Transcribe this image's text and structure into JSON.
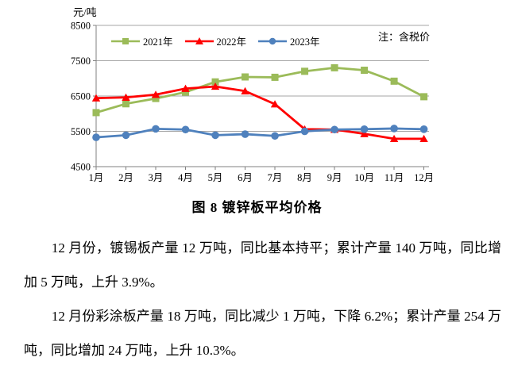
{
  "document": {
    "figure_caption": "图 8  镀锌板平均价格",
    "paragraphs": [
      "12 月份，镀锡板产量 12 万吨，同比基本持平；累计产量 140 万吨，同比增加 5 万吨，上升 3.9%。",
      "12 月份彩涂板产量 18 万吨，同比减少 1 万吨，下降 6.2%；累计产量 254 万吨，同比增加 24 万吨，上升 10.3%。"
    ]
  },
  "chart_data": {
    "type": "line",
    "title": "图 8  镀锌板平均价格",
    "unit_label": "元/吨",
    "note": "注：含税价",
    "legend_position": "top-inside",
    "grid": true,
    "categories": [
      "1月",
      "2月",
      "3月",
      "4月",
      "5月",
      "6月",
      "7月",
      "8月",
      "9月",
      "10月",
      "11月",
      "12月"
    ],
    "y_ticks": [
      8500,
      7500,
      6500,
      5500,
      4500
    ],
    "ylim": [
      4500,
      8500
    ],
    "series": [
      {
        "name": "2021年",
        "color": "#9BBB59",
        "marker": "square",
        "values": [
          6030,
          6280,
          6430,
          6610,
          6900,
          7040,
          7030,
          7200,
          7300,
          7230,
          6920,
          6480
        ]
      },
      {
        "name": "2022年",
        "color": "#FF0000",
        "marker": "triangle",
        "values": [
          6440,
          6460,
          6540,
          6710,
          6770,
          6640,
          6270,
          5560,
          5550,
          5430,
          5290,
          5290
        ]
      },
      {
        "name": "2023年",
        "color": "#4F81BD",
        "marker": "circle",
        "values": [
          5330,
          5390,
          5570,
          5550,
          5390,
          5420,
          5370,
          5500,
          5550,
          5560,
          5580,
          5560
        ]
      }
    ]
  },
  "colors": {
    "grid": "#A6A6A6",
    "axis": "#808080"
  }
}
